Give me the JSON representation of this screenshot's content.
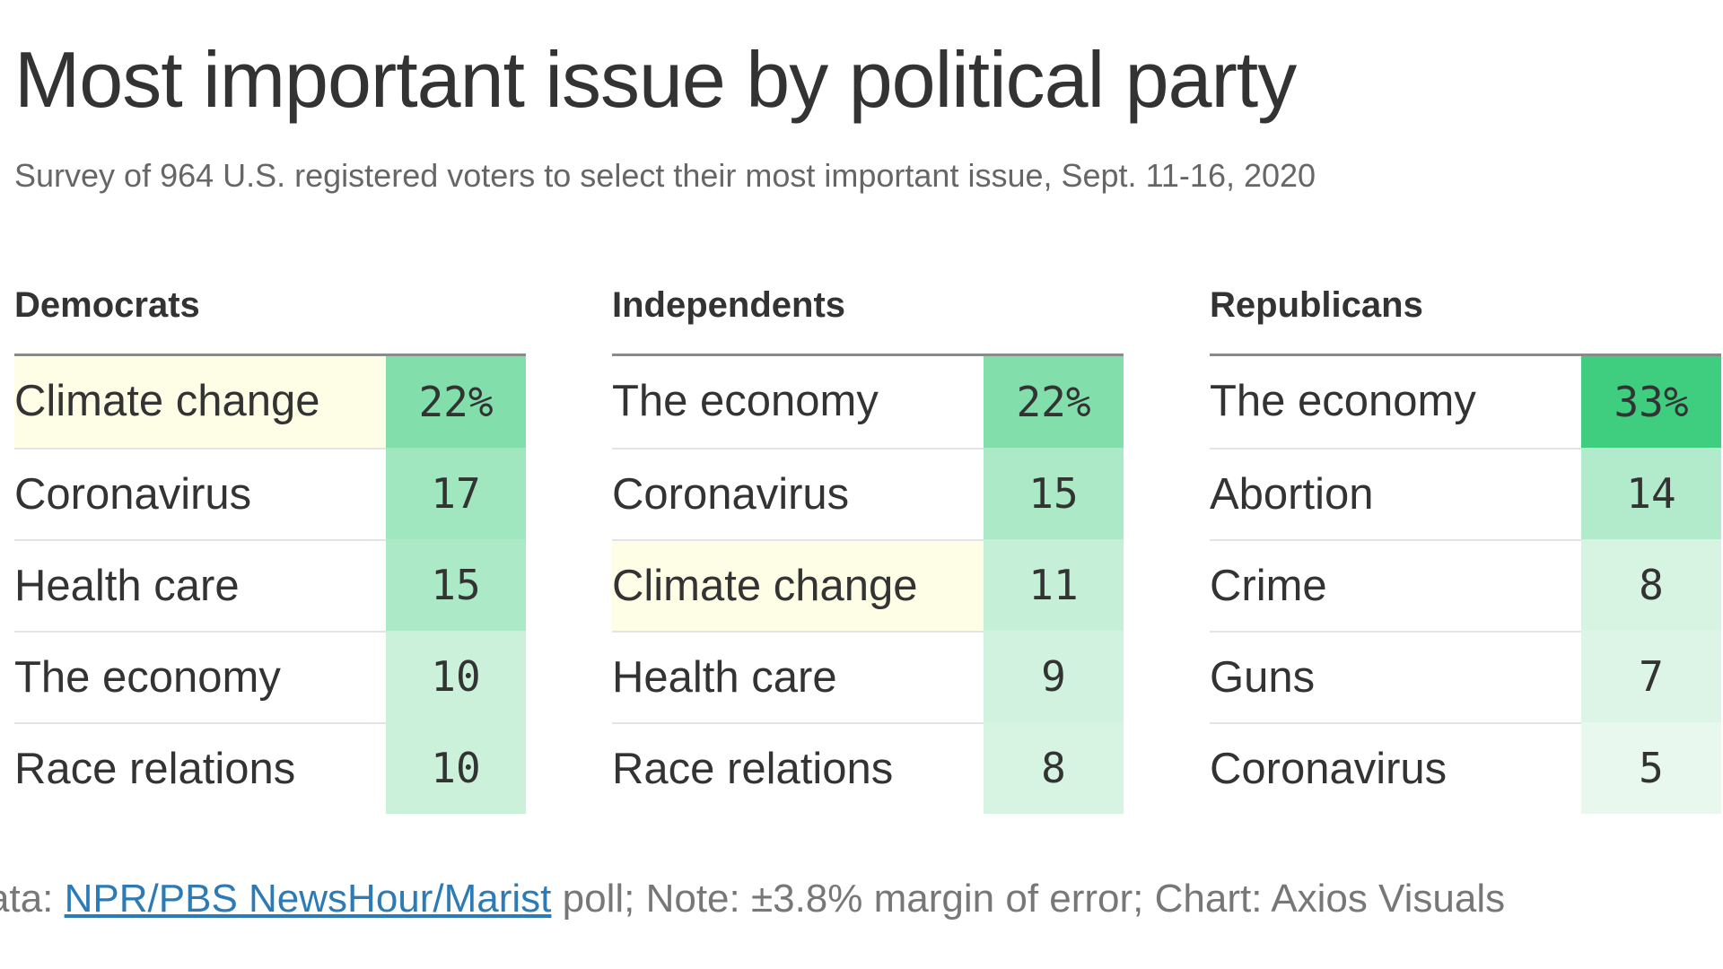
{
  "title": "Most important issue by political party",
  "subtitle": "Survey of 964 U.S. registered voters to select their most important issue, Sept. 11-16, 2020",
  "footer": {
    "prefix": "ata: ",
    "source_link": "NPR/PBS NewsHour/Marist",
    "suffix": " poll; Note: ±3.8% margin of error; Chart: Axios Visuals"
  },
  "colors": {
    "highlight_row": "#fefde6",
    "heat_scale_low": "#e9f8ef",
    "heat_scale_high": "#3fce80"
  },
  "chart_data": {
    "type": "table",
    "value_range": [
      5,
      33
    ],
    "tables": [
      {
        "name": "Democrats",
        "rows": [
          {
            "issue": "Climate change",
            "value": 22,
            "display": "22%",
            "highlight": true
          },
          {
            "issue": "Coronavirus",
            "value": 17,
            "display": "17",
            "highlight": false
          },
          {
            "issue": "Health care",
            "value": 15,
            "display": "15",
            "highlight": false
          },
          {
            "issue": "The economy",
            "value": 10,
            "display": "10",
            "highlight": false
          },
          {
            "issue": "Race relations",
            "value": 10,
            "display": "10",
            "highlight": false
          }
        ]
      },
      {
        "name": "Independents",
        "rows": [
          {
            "issue": "The economy",
            "value": 22,
            "display": "22%",
            "highlight": false
          },
          {
            "issue": "Coronavirus",
            "value": 15,
            "display": "15",
            "highlight": false
          },
          {
            "issue": "Climate change",
            "value": 11,
            "display": "11",
            "highlight": true
          },
          {
            "issue": "Health care",
            "value": 9,
            "display": "9",
            "highlight": false
          },
          {
            "issue": "Race relations",
            "value": 8,
            "display": "8",
            "highlight": false
          }
        ]
      },
      {
        "name": "Republicans",
        "rows": [
          {
            "issue": "The economy",
            "value": 33,
            "display": "33%",
            "highlight": false
          },
          {
            "issue": "Abortion",
            "value": 14,
            "display": "14",
            "highlight": false
          },
          {
            "issue": "Crime",
            "value": 8,
            "display": "8",
            "highlight": false
          },
          {
            "issue": "Guns",
            "value": 7,
            "display": "7",
            "highlight": false
          },
          {
            "issue": "Coronavirus",
            "value": 5,
            "display": "5",
            "highlight": false
          }
        ]
      }
    ]
  }
}
